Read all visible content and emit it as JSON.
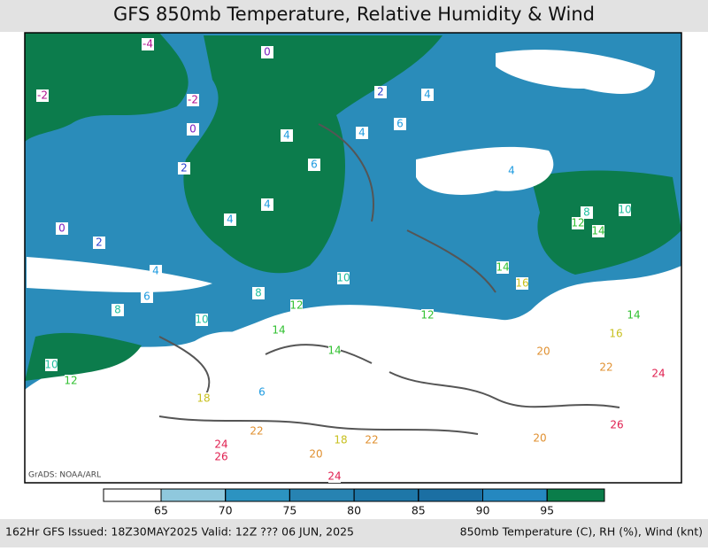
{
  "header": {
    "title": "GFS 850mb Temperature, Relative Humidity & Wind"
  },
  "colorbar": {
    "levels": [
      65,
      70,
      75,
      80,
      85,
      90,
      95
    ],
    "colors": [
      "#ffffff",
      "#8fc8dd",
      "#2c93c1",
      "#2783b2",
      "#1e77a8",
      "#1b6fa3",
      "#2588c0",
      "#0a7d4a"
    ]
  },
  "map": {
    "credit": "GrADS: NOAA/ARL",
    "temperature_labels": [
      -4,
      0,
      -2,
      -2,
      2,
      4,
      6,
      0,
      4,
      4,
      6,
      2,
      4,
      4,
      4,
      0,
      2,
      8,
      10,
      12,
      14,
      4,
      6,
      8,
      8,
      10,
      14,
      16,
      12,
      12,
      14,
      10,
      14,
      16,
      10,
      12,
      14,
      6,
      18,
      20,
      22,
      24,
      26,
      20,
      22,
      24,
      26,
      20,
      18,
      22,
      24
    ]
  },
  "footer": {
    "left": "162Hr GFS Issued: 18Z30MAY2025 Valid: 12Z ??? 06 JUN, 2025",
    "right": "850mb Temperature (C), RH (%), Wind (knt)"
  }
}
